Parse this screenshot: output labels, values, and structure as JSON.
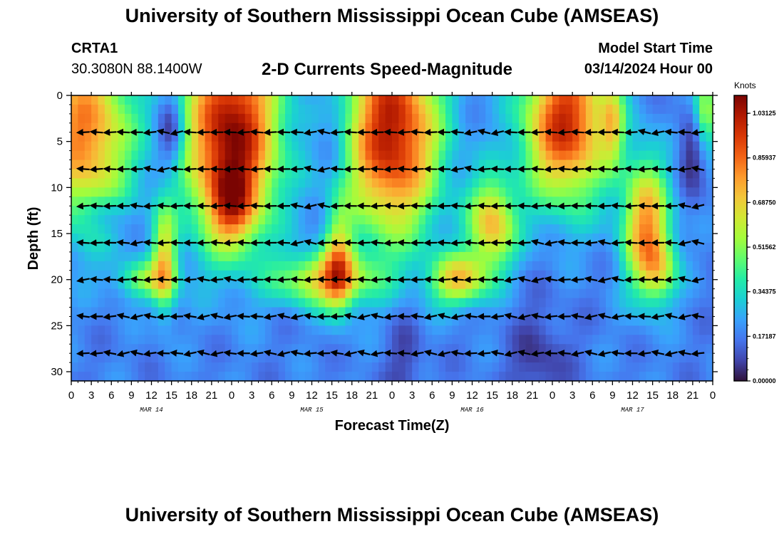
{
  "header": {
    "title": "University of Southern Mississippi Ocean Cube (AMSEAS)",
    "station": "CRTA1",
    "coords": "30.3080N  88.1400W",
    "chart_title": "2-D Currents Speed-Magnitude",
    "model_start_label": "Model Start Time",
    "model_start_value": "03/14/2024 Hour 00"
  },
  "footer": {
    "title": "University of Southern Mississippi Ocean Cube (AMSEAS)"
  },
  "colorbar": {
    "units": "Knots",
    "ticks": [
      "1.03125",
      "0.85937",
      "0.68750",
      "0.51562",
      "0.34375",
      "0.17187",
      "0.00000"
    ],
    "tick_values": [
      1.03125,
      0.859375,
      0.6875,
      0.515625,
      0.34375,
      0.171875,
      0.0
    ],
    "range": [
      0,
      1.1
    ],
    "colors": [
      "#30123b",
      "#4145ab",
      "#4675ed",
      "#39a2fc",
      "#1bcfd4",
      "#24eca6",
      "#61fc6c",
      "#a4fc3b",
      "#d1e834",
      "#f3c63a",
      "#fe9b2d",
      "#f36315",
      "#d93806",
      "#b11901",
      "#7a0402"
    ]
  },
  "chart_data": {
    "type": "heatmap",
    "title": "2-D Currents Speed-Magnitude",
    "xlabel": "Forecast Time(Z)",
    "ylabel": "Depth (ft)",
    "xlim": [
      0,
      96
    ],
    "ylim": [
      31,
      0
    ],
    "x_tick_values": [
      0,
      3,
      6,
      9,
      12,
      15,
      18,
      21,
      24,
      27,
      30,
      33,
      36,
      39,
      42,
      45,
      48,
      51,
      54,
      57,
      60,
      63,
      66,
      69,
      72,
      75,
      78,
      81,
      84,
      87,
      90,
      93,
      96
    ],
    "x_tick_labels": [
      "0",
      "3",
      "6",
      "9",
      "12",
      "15",
      "18",
      "21",
      "0",
      "3",
      "6",
      "9",
      "12",
      "15",
      "18",
      "21",
      "0",
      "3",
      "6",
      "9",
      "12",
      "15",
      "18",
      "21",
      "0",
      "3",
      "6",
      "9",
      "12",
      "15",
      "18",
      "21",
      "0"
    ],
    "y_tick_values": [
      0,
      5,
      10,
      15,
      20,
      25,
      30
    ],
    "y_tick_labels": [
      "0",
      "5",
      "10",
      "15",
      "20",
      "25",
      "30"
    ],
    "date_labels": [
      {
        "text": "MAR 14",
        "hour": 12
      },
      {
        "text": "MAR 15",
        "hour": 36
      },
      {
        "text": "MAR 16",
        "hour": 60
      },
      {
        "text": "MAR 17",
        "hour": 84
      }
    ],
    "vector_depths": [
      4,
      8,
      12,
      16,
      20,
      24,
      28
    ],
    "vector_interval_hours": 2,
    "blobs": [
      {
        "t": 2,
        "d": 4,
        "st": 5,
        "sd": 7,
        "a": 0.65
      },
      {
        "t": 11,
        "d": 20,
        "st": 3,
        "sd": 1.5,
        "a": 0.3
      },
      {
        "t": 14,
        "d": 18,
        "st": 1.3,
        "sd": 4,
        "a": 0.45
      },
      {
        "t": 24,
        "d": 4,
        "st": 5,
        "sd": 8,
        "a": 0.9
      },
      {
        "t": 24,
        "d": 12,
        "st": 2.5,
        "sd": 3,
        "a": 0.35
      },
      {
        "t": 38,
        "d": 20,
        "st": 5,
        "sd": 2,
        "a": 0.5
      },
      {
        "t": 40,
        "d": 18,
        "st": 1.5,
        "sd": 4,
        "a": 0.4
      },
      {
        "t": 48,
        "d": 4,
        "st": 5,
        "sd": 8,
        "a": 0.85
      },
      {
        "t": 58,
        "d": 20,
        "st": 3,
        "sd": 2,
        "a": 0.5
      },
      {
        "t": 63,
        "d": 14,
        "st": 2.5,
        "sd": 3.5,
        "a": 0.55
      },
      {
        "t": 74,
        "d": 3,
        "st": 4.5,
        "sd": 6,
        "a": 0.8
      },
      {
        "t": 86,
        "d": 14,
        "st": 2.5,
        "sd": 5,
        "a": 0.6
      },
      {
        "t": 88,
        "d": 19,
        "st": 2,
        "sd": 2.5,
        "a": 0.3
      },
      {
        "t": 81,
        "d": 3,
        "st": 1.2,
        "sd": 3,
        "a": 0.3
      },
      {
        "t": 95,
        "d": 2,
        "st": 1.2,
        "sd": 3,
        "a": 0.4
      }
    ],
    "sinks": [
      {
        "t": 15,
        "d": 4,
        "st": 1.5,
        "sd": 3,
        "a": 0.25
      },
      {
        "t": 5,
        "d": 13,
        "st": 2,
        "sd": 1.5,
        "a": 0.12
      },
      {
        "t": 39,
        "d": 4,
        "st": 2,
        "sd": 3,
        "a": 0.12
      },
      {
        "t": 50,
        "d": 29,
        "st": 2,
        "sd": 4,
        "a": 0.1
      },
      {
        "t": 70,
        "d": 29,
        "st": 3,
        "sd": 4,
        "a": 0.12
      },
      {
        "t": 93,
        "d": 6,
        "st": 1.5,
        "sd": 3,
        "a": 0.15
      }
    ],
    "base_speed": 0.18
  }
}
